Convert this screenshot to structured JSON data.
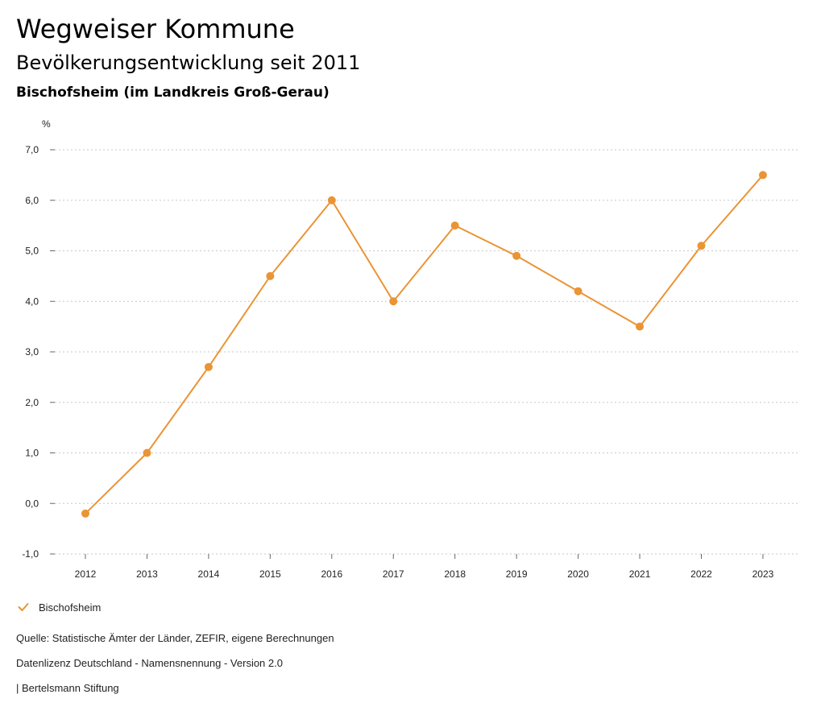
{
  "header": {
    "title": "Wegweiser Kommune",
    "subtitle": "Bevölkerungsentwicklung seit 2011",
    "region": "Bischofsheim (im Landkreis Groß-Gerau)"
  },
  "chart_data": {
    "type": "line",
    "title": "Bevölkerungsentwicklung seit 2011",
    "xlabel": "",
    "ylabel": "%",
    "x": [
      "2012",
      "2013",
      "2014",
      "2015",
      "2016",
      "2017",
      "2018",
      "2019",
      "2020",
      "2021",
      "2022",
      "2023"
    ],
    "series": [
      {
        "name": "Bischofsheim",
        "color": "#ea9435",
        "values": [
          -0.2,
          1.0,
          2.7,
          4.5,
          6.0,
          4.0,
          5.5,
          4.9,
          4.2,
          3.5,
          5.1,
          6.5
        ]
      }
    ],
    "ylim": [
      -1.0,
      7.0
    ],
    "yticks": [
      -1.0,
      0.0,
      1.0,
      2.0,
      3.0,
      4.0,
      5.0,
      6.0,
      7.0
    ],
    "ytick_labels": [
      "-1,0",
      "0,0",
      "1,0",
      "2,0",
      "3,0",
      "4,0",
      "5,0",
      "6,0",
      "7,0"
    ],
    "grid": true,
    "legend_position": "bottom-left"
  },
  "legend": {
    "label": "Bischofsheim",
    "icon": "check-icon"
  },
  "footer": {
    "source": "Quelle: Statistische Ämter der Länder, ZEFIR, eigene Berechnungen",
    "license": "Datenlizenz Deutschland - Namensnennung - Version 2.0",
    "credit": "| Bertelsmann Stiftung"
  }
}
